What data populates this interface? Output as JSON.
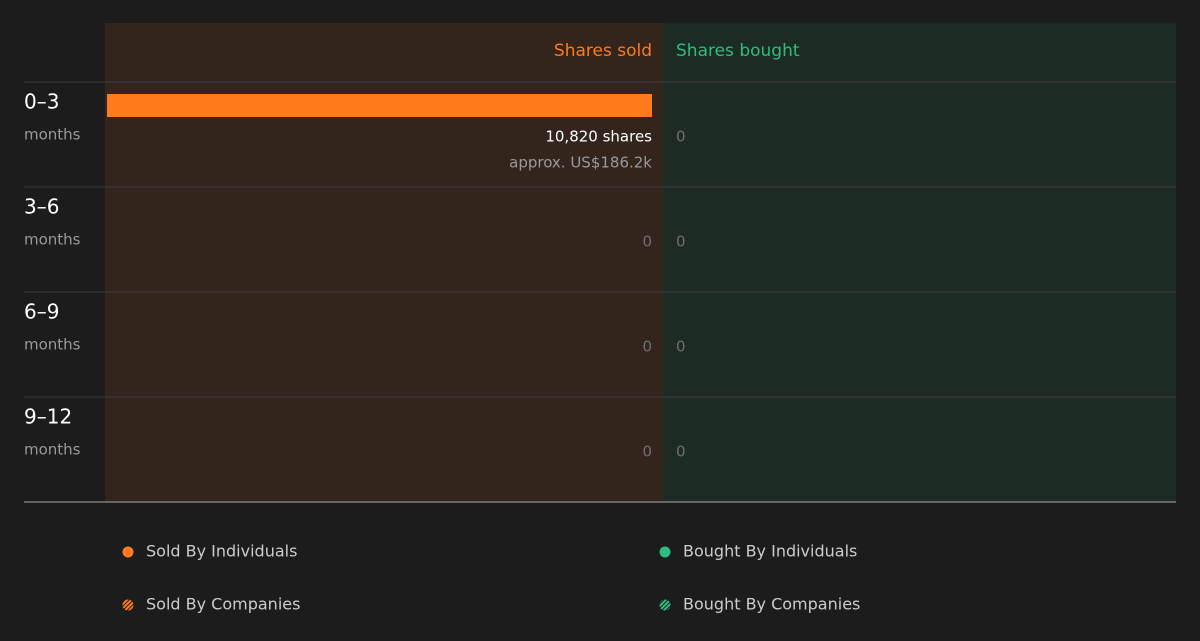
{
  "chart_data": {
    "type": "diverging-bar",
    "category_unit": "months",
    "categories": [
      "0–3",
      "3–6",
      "6–9",
      "9–12"
    ],
    "series": [
      {
        "name": "Shares sold",
        "color": "#ff7b1c",
        "panel_color": "#33241c",
        "side": "left",
        "values": [
          10820,
          0,
          0,
          0
        ],
        "value_labels": [
          "10,820 shares",
          "0",
          "0",
          "0"
        ],
        "value_notes": [
          "approx. US$186.2k",
          null,
          null,
          null
        ]
      },
      {
        "name": "Shares bought",
        "color": "#2ebd7e",
        "panel_color": "#1d2b25",
        "side": "right",
        "values": [
          0,
          0,
          0,
          0
        ]
      }
    ],
    "legend": [
      {
        "label": "Sold By Individuals",
        "color": "#ff7b1c",
        "style": "solid"
      },
      {
        "label": "Bought By Individuals",
        "color": "#2ebd7e",
        "style": "solid"
      },
      {
        "label": "Sold By Companies",
        "color": "#ff7b1c",
        "style": "striped"
      },
      {
        "label": "Bought By Companies",
        "color": "#2ebd7e",
        "style": "striped"
      }
    ]
  }
}
